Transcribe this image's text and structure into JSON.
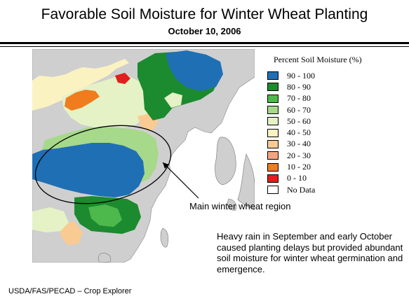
{
  "header": {
    "title": "Favorable Soil Moisture for Winter Wheat Planting",
    "date": "October 10, 2006"
  },
  "legend": {
    "title": "Percent Soil Moisture (%)",
    "items": [
      {
        "label": "90 - 100",
        "color": "#1f6fb5"
      },
      {
        "label": "80 - 90",
        "color": "#1c8a2e"
      },
      {
        "label": "70 - 80",
        "color": "#4db84b"
      },
      {
        "label": "60 - 70",
        "color": "#a6d98a"
      },
      {
        "label": "50 - 60",
        "color": "#e4f2c6"
      },
      {
        "label": "40 - 50",
        "color": "#fbf2c2"
      },
      {
        "label": "30 - 40",
        "color": "#f9cb92"
      },
      {
        "label": "20 - 30",
        "color": "#f3a582"
      },
      {
        "label": "10 - 20",
        "color": "#f07c1e"
      },
      {
        "label": "0 - 10",
        "color": "#e0201e"
      },
      {
        "label": "No Data",
        "color": "#ffffff"
      }
    ]
  },
  "map": {
    "land_color": "#cfcfcf",
    "sea_color": "#ffffff",
    "region_label": "Main winter wheat region"
  },
  "note": "Heavy rain in September and early October caused planting delays but provided abundant soil moisture for winter wheat germination and emergence.",
  "source": "USDA/FAS/PECAD – Crop Explorer"
}
